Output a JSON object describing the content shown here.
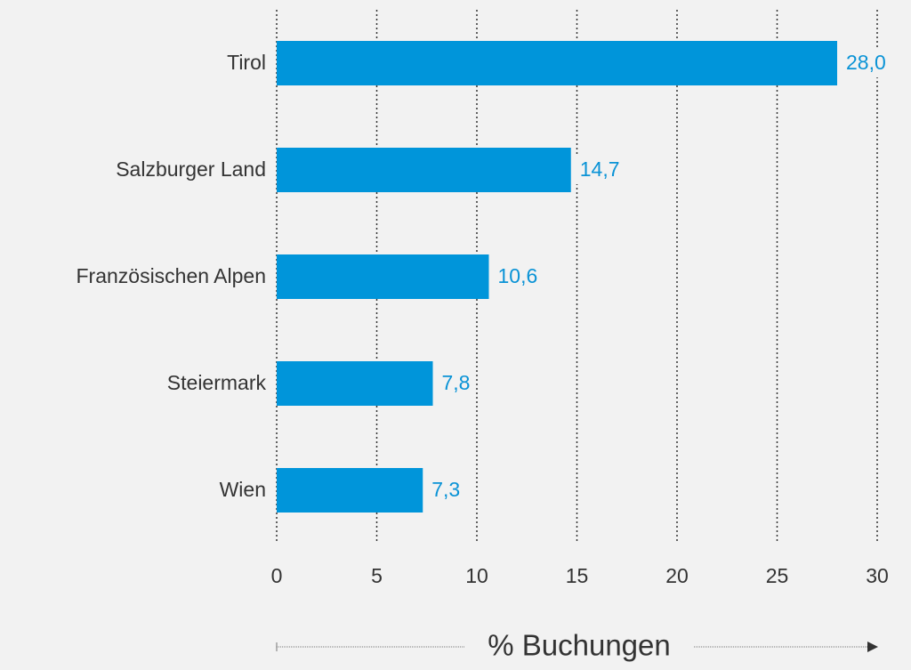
{
  "chart_data": {
    "type": "bar",
    "orientation": "horizontal",
    "categories": [
      "Tirol",
      "Salzburger Land",
      "Französischen Alpen",
      "Steiermark",
      "Wien"
    ],
    "values": [
      28.0,
      14.7,
      10.6,
      7.8,
      7.3
    ],
    "value_labels": [
      "28,0",
      "14,7",
      "10,6",
      "7,8",
      "7,3"
    ],
    "color": "#0095da",
    "xlim": [
      0,
      30
    ],
    "xticks": [
      0,
      5,
      10,
      15,
      20,
      25,
      30
    ],
    "xlabel": "% Buchungen",
    "grid": true
  }
}
